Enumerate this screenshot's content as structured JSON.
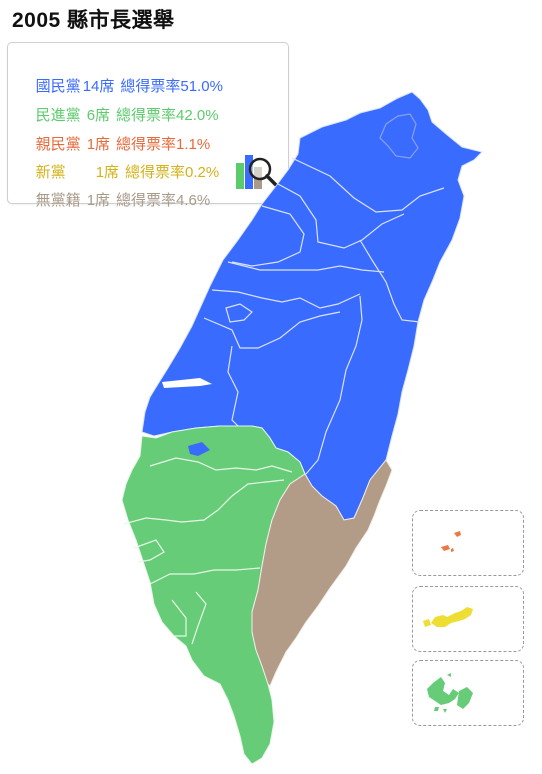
{
  "title": "2005 縣市長選舉",
  "legend": [
    {
      "party": "國民黨",
      "seats": "14席",
      "share": "總得票率51.0%",
      "color": "#3a6bff"
    },
    {
      "party": "民進黨",
      "seats": "6席",
      "share": "總得票率42.0%",
      "color": "#5ccb6c"
    },
    {
      "party": "親民黨",
      "seats": "1席",
      "share": "總得票率1.1%",
      "color": "#e8693a"
    },
    {
      "party": "新黨",
      "seats": "1席",
      "share": "總得票率0.2%",
      "color": "#d4b21a"
    },
    {
      "party": "無黨籍",
      "seats": "1席",
      "share": "總得票率4.6%",
      "color": "#a99a8a"
    }
  ],
  "icons": {
    "chart_toggle": "bar-chart-magnifier-icon"
  },
  "map_colors": {
    "kmt": "#3a6bff",
    "dpp": "#66cc77",
    "pfp": "#ee7744",
    "np": "#eedd33",
    "ind": "#b39c87",
    "border": "#d8e2ff"
  }
}
